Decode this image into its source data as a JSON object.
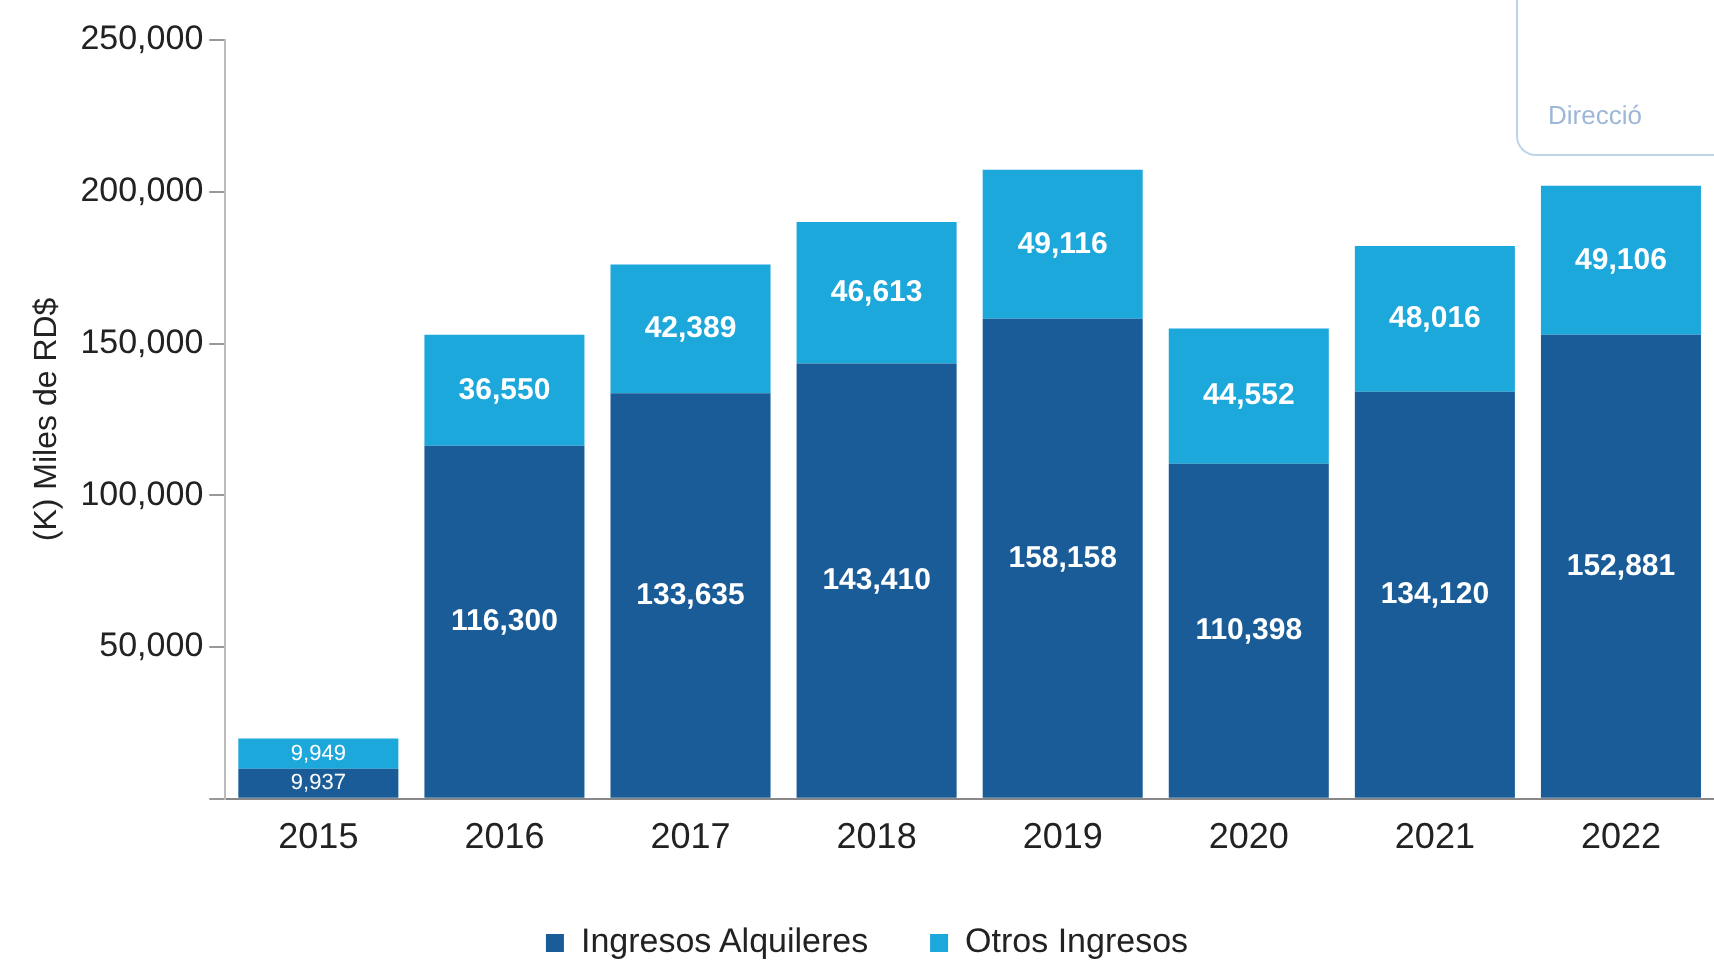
{
  "chart_data": {
    "type": "bar",
    "stacked": true,
    "ylabel": "(K) Miles de RD$",
    "categories": [
      "2015",
      "2016",
      "2017",
      "2018",
      "2019",
      "2020",
      "2021",
      "2022"
    ],
    "series": [
      {
        "name": "Ingresos Alquileres",
        "color": "#1a5c97",
        "values": [
          9937,
          116300,
          133635,
          143410,
          158158,
          110398,
          134120,
          152881
        ],
        "value_labels": [
          "9,937",
          "116,300",
          "133,635",
          "143,410",
          "158,158",
          "110,398",
          "134,120",
          "152,881"
        ]
      },
      {
        "name": "Otros Ingresos",
        "color": "#1da8dc",
        "values": [
          9949,
          36550,
          42389,
          46613,
          49116,
          44552,
          48016,
          49106
        ],
        "value_labels": [
          "9,949",
          "36,550",
          "42,389",
          "46,613",
          "49,116",
          "44,552",
          "48,016",
          "49,106"
        ]
      }
    ],
    "ylim": [
      0,
      250000
    ],
    "yticks": [
      {
        "value": 0,
        "label": null
      },
      {
        "value": 50000,
        "label": "50,000"
      },
      {
        "value": 100000,
        "label": "100,000"
      },
      {
        "value": 150000,
        "label": "150,000"
      },
      {
        "value": 200000,
        "label": "200,000"
      },
      {
        "value": 250000,
        "label": "250,000"
      }
    ],
    "grid": false,
    "legend": "bottom",
    "annotations": [
      "Direcció"
    ]
  }
}
